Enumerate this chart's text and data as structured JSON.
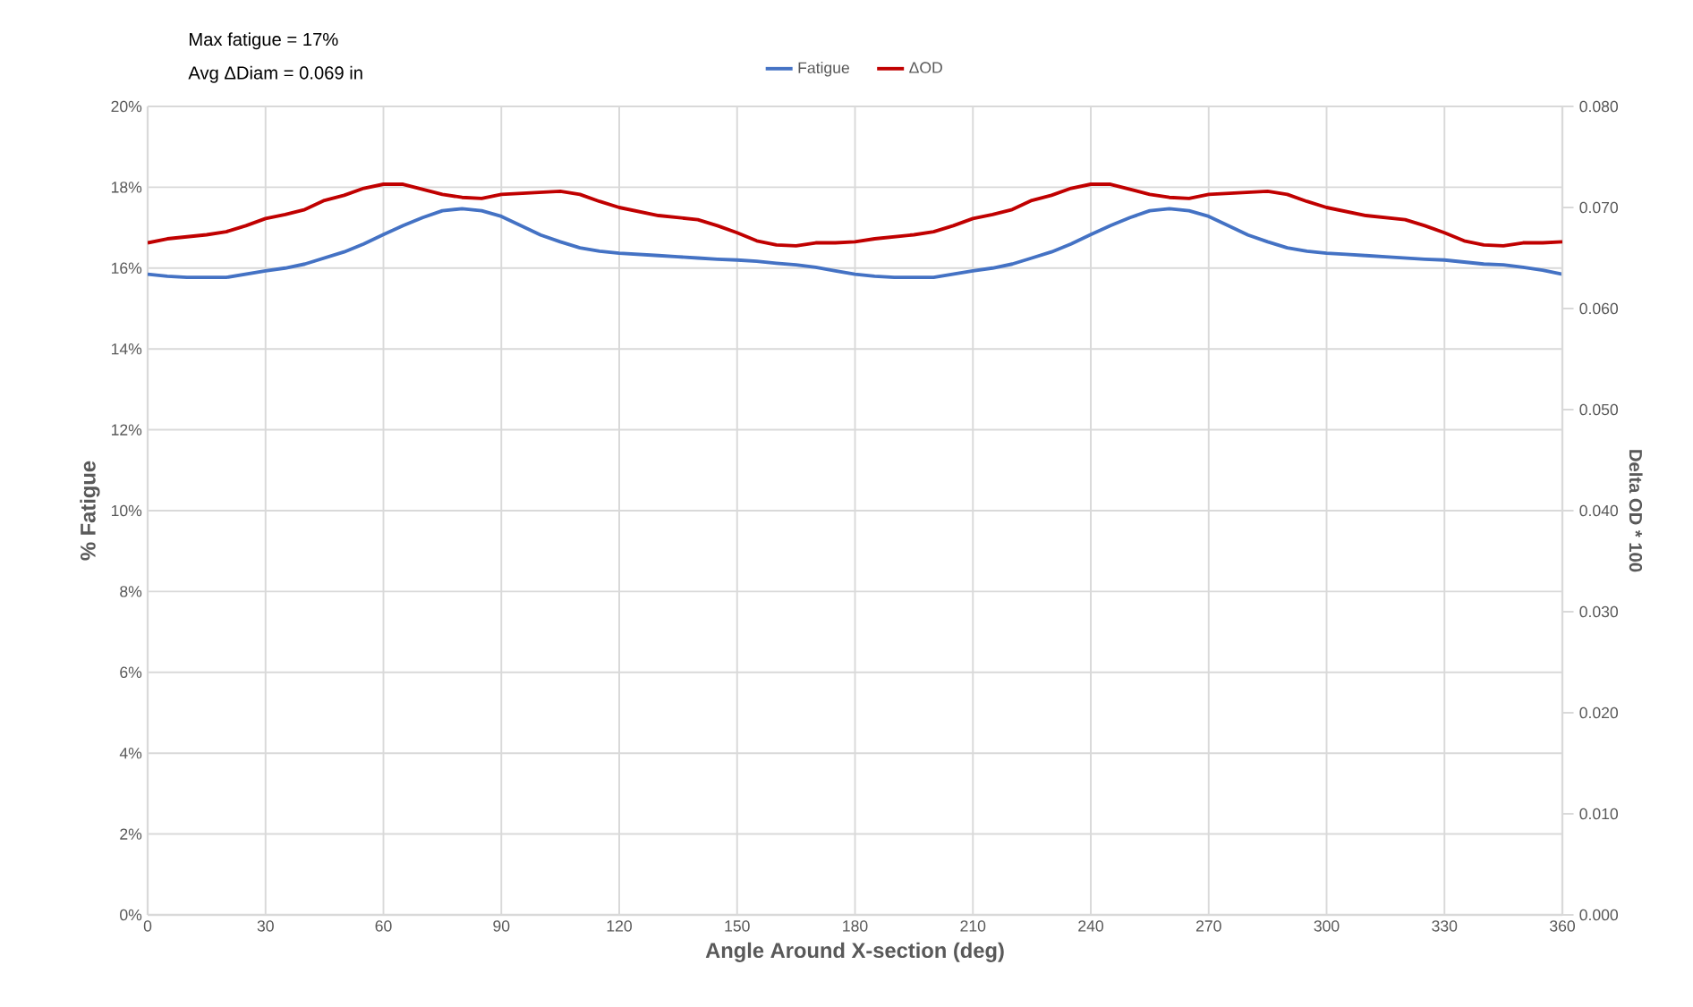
{
  "chart_data": {
    "type": "line",
    "xlabel": "Angle Around X-section (deg)",
    "ylabel": "% Fatigue",
    "y2label": "Delta OD * 100",
    "annotations": [
      "Max fatigue = 17%",
      "Avg ΔDiam = 0.069 in"
    ],
    "x": [
      0,
      5,
      10,
      15,
      20,
      25,
      30,
      35,
      40,
      45,
      50,
      55,
      60,
      65,
      70,
      75,
      80,
      85,
      90,
      95,
      100,
      105,
      110,
      115,
      120,
      125,
      130,
      135,
      140,
      145,
      150,
      155,
      160,
      165,
      170,
      175,
      180,
      185,
      190,
      195,
      200,
      205,
      210,
      215,
      220,
      225,
      230,
      235,
      240,
      245,
      250,
      255,
      260,
      265,
      270,
      275,
      280,
      285,
      290,
      295,
      300,
      305,
      310,
      315,
      320,
      325,
      330,
      335,
      340,
      345,
      350,
      355,
      360
    ],
    "series": [
      {
        "name": "Fatigue",
        "color": "#4472c4",
        "values": [
          15.85,
          15.8,
          15.77,
          15.77,
          15.77,
          15.85,
          15.93,
          16.0,
          16.1,
          16.25,
          16.4,
          16.6,
          16.83,
          17.05,
          17.25,
          17.42,
          17.47,
          17.42,
          17.28,
          17.05,
          16.82,
          16.65,
          16.5,
          16.42,
          16.37,
          16.34,
          16.31,
          16.28,
          16.25,
          16.22,
          16.2,
          16.17,
          16.12,
          16.08,
          16.02,
          15.93,
          15.85,
          15.8,
          15.77,
          15.77,
          15.77,
          15.85,
          15.93,
          16.0,
          16.1,
          16.25,
          16.4,
          16.6,
          16.83,
          17.05,
          17.25,
          17.42,
          17.47,
          17.42,
          17.28,
          17.05,
          16.82,
          16.65,
          16.5,
          16.42,
          16.37,
          16.34,
          16.31,
          16.28,
          16.25,
          16.22,
          16.2,
          16.15,
          16.1,
          16.08,
          16.02,
          15.95,
          15.85
        ]
      },
      {
        "name": "ΔOD",
        "color": "#c00000",
        "axis": "y2",
        "values": [
          0.0665,
          0.0669,
          0.0671,
          0.0673,
          0.0676,
          0.0682,
          0.0689,
          0.0693,
          0.0698,
          0.0707,
          0.0712,
          0.0719,
          0.0723,
          0.0723,
          0.0718,
          0.0713,
          0.071,
          0.0709,
          0.0713,
          0.0714,
          0.0715,
          0.0716,
          0.0713,
          0.0706,
          0.07,
          0.0696,
          0.0692,
          0.069,
          0.0688,
          0.0682,
          0.0675,
          0.0667,
          0.0663,
          0.0662,
          0.0665,
          0.0665,
          0.0666,
          0.0669,
          0.0671,
          0.0673,
          0.0676,
          0.0682,
          0.0689,
          0.0693,
          0.0698,
          0.0707,
          0.0712,
          0.0719,
          0.0723,
          0.0723,
          0.0718,
          0.0713,
          0.071,
          0.0709,
          0.0713,
          0.0714,
          0.0715,
          0.0716,
          0.0713,
          0.0706,
          0.07,
          0.0696,
          0.0692,
          0.069,
          0.0688,
          0.0682,
          0.0675,
          0.0667,
          0.0663,
          0.0662,
          0.0665,
          0.0665,
          0.0666
        ]
      }
    ],
    "xlim": [
      0,
      360
    ],
    "xticks": [
      0,
      30,
      60,
      90,
      120,
      150,
      180,
      210,
      240,
      270,
      300,
      330,
      360
    ],
    "ylim": [
      0,
      20
    ],
    "yticks": [
      {
        "value": 0,
        "label": "0%"
      },
      {
        "value": 2,
        "label": "2%"
      },
      {
        "value": 4,
        "label": "4%"
      },
      {
        "value": 6,
        "label": "6%"
      },
      {
        "value": 8,
        "label": "8%"
      },
      {
        "value": 10,
        "label": "10%"
      },
      {
        "value": 12,
        "label": "12%"
      },
      {
        "value": 14,
        "label": "14%"
      },
      {
        "value": 16,
        "label": "16%"
      },
      {
        "value": 18,
        "label": "18%"
      },
      {
        "value": 20,
        "label": "20%"
      }
    ],
    "y2lim": [
      0,
      0.08
    ],
    "y2ticks": [
      {
        "value": 0,
        "label": "0.000"
      },
      {
        "value": 0.01,
        "label": "0.010"
      },
      {
        "value": 0.02,
        "label": "0.020"
      },
      {
        "value": 0.03,
        "label": "0.030"
      },
      {
        "value": 0.04,
        "label": "0.040"
      },
      {
        "value": 0.05,
        "label": "0.050"
      },
      {
        "value": 0.06,
        "label": "0.060"
      },
      {
        "value": 0.07,
        "label": "0.070"
      },
      {
        "value": 0.08,
        "label": "0.080"
      }
    ],
    "grid": true,
    "legend": "top"
  }
}
